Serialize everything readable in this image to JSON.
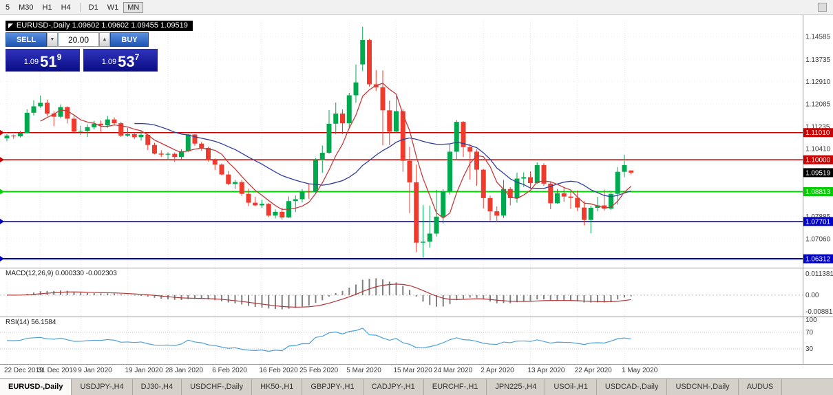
{
  "colors": {
    "up": "#00a94e",
    "down": "#ef3b2d",
    "ma_fast": "#c43a3a",
    "ma_slow": "#2f3d9a",
    "macd_hist": "#7f7f7f",
    "macd_signal": "#b03636",
    "rsi": "#4da0d8",
    "level_red": "#c80000",
    "level_green": "#00d200",
    "level_blue": "#0000c8"
  },
  "toolbar": {
    "timeframes": [
      "5",
      "M30",
      "H1",
      "H4",
      "D1",
      "W1",
      "MN"
    ],
    "active": "MN",
    "separator_before": "D1"
  },
  "ohlc_bar": {
    "icon": "◤",
    "text": "EURUSD-,Daily 1.09602 1.09602 1.09455 1.09519"
  },
  "trade_panel": {
    "sell_label": "SELL",
    "buy_label": "BUY",
    "volume": "20.00",
    "spinner_down_icon": "▼",
    "spinner_up_icon": "▲",
    "bid": {
      "prefix": "1.09",
      "big": "51",
      "sup": "9"
    },
    "ask": {
      "prefix": "1.09",
      "big": "53",
      "sup": "7"
    }
  },
  "price_axis": {
    "ticks": [
      "1.14585",
      "1.13735",
      "1.12910",
      "1.12085",
      "1.11235",
      "1.10410",
      "1.07885",
      "1.07060"
    ],
    "badges": [
      {
        "value": "1.11010",
        "bg": "#c80000",
        "fg": "#ffffff"
      },
      {
        "value": "1.10000",
        "bg": "#c80000",
        "fg": "#ffffff"
      },
      {
        "value": "1.09519",
        "bg": "#000000",
        "fg": "#ffffff"
      },
      {
        "value": "1.08813",
        "bg": "#00cc00",
        "fg": "#ffffff"
      },
      {
        "value": "1.07701",
        "bg": "#0000c8",
        "fg": "#ffffff"
      },
      {
        "value": "1.06312",
        "bg": "#0000c8",
        "fg": "#ffffff"
      }
    ]
  },
  "tabs": {
    "items": [
      "EURUSD-,Daily",
      "USDJPY-,H4",
      "DJ30-,H4",
      "USDCHF-,Daily",
      "HK50-,H1",
      "GBPJPY-,H1",
      "CADJPY-,H1",
      "EURCHF-,H1",
      "JPN225-,H4",
      "USOil-,H1",
      "USDCAD-,Daily",
      "USDCNH-,Daily",
      "AUDUS"
    ],
    "active": "EURUSD-,Daily"
  },
  "chart_data": {
    "type": "candlestick",
    "symbol": "EURUSD-",
    "timeframe": "Daily",
    "ohlc_current": {
      "open": 1.09602,
      "high": 1.09602,
      "low": 1.09455,
      "close": 1.09519
    },
    "price_range": {
      "max": 1.1518,
      "min": 1.0598
    },
    "hlines": [
      {
        "price": 1.1101,
        "color": "#c80000",
        "w": 1.5
      },
      {
        "price": 1.1,
        "color": "#c80000",
        "w": 1.5
      },
      {
        "price": 1.08813,
        "color": "#00d200",
        "w": 2
      },
      {
        "price": 1.07701,
        "color": "#0000c8",
        "w": 1.5
      },
      {
        "price": 1.06312,
        "color": "#0000c8",
        "w": 2
      }
    ],
    "ma": [
      {
        "period": 20,
        "color": "#2f3d9a"
      },
      {
        "period": 6,
        "color": "#c43a3a"
      }
    ],
    "macd": {
      "label": "MACD(12,26,9) 0.000330 -0.002303",
      "params": [
        12,
        26,
        9
      ],
      "values": [
        0.00033,
        -0.002303
      ],
      "ticks": [
        {
          "v": 0.011381,
          "t": "0.011381"
        },
        {
          "v": 0,
          "t": "0.00"
        },
        {
          "v": -0.00881,
          "t": "-0.00881"
        }
      ]
    },
    "rsi": {
      "label": "RSI(14) 56.1584",
      "period": 14,
      "value": 56.1584,
      "ticks": [
        {
          "v": 100,
          "label": "100"
        },
        {
          "v": 70,
          "label": "70"
        },
        {
          "v": 30,
          "label": "30"
        }
      ]
    },
    "x_labels": [
      [
        "22 Dec 2019",
        0
      ],
      [
        "31 Dec 2019",
        5
      ],
      [
        "9 Jan 2020",
        11
      ],
      [
        "19 Jan 2020",
        18
      ],
      [
        "28 Jan 2020",
        24
      ],
      [
        "6 Feb 2020",
        31
      ],
      [
        "16 Feb 2020",
        38
      ],
      [
        "25 Feb 2020",
        44
      ],
      [
        "5 Mar 2020",
        51
      ],
      [
        "15 Mar 2020",
        58
      ],
      [
        "24 Mar 2020",
        64
      ],
      [
        "2 Apr 2020",
        71
      ],
      [
        "13 Apr 2020",
        78
      ],
      [
        "22 Apr 2020",
        85
      ],
      [
        "1 May 2020",
        92
      ]
    ],
    "candles": [
      [
        "2019.12.23",
        1.108,
        1.1095,
        1.1069,
        1.109
      ],
      [
        "2019.12.24",
        1.109,
        1.1094,
        1.1078,
        1.1087
      ],
      [
        "2019.12.26",
        1.1087,
        1.1107,
        1.1083,
        1.11
      ],
      [
        "2019.12.27",
        1.11,
        1.1188,
        1.1098,
        1.1175
      ],
      [
        "2019.12.30",
        1.1175,
        1.1221,
        1.1165,
        1.1199
      ],
      [
        "2019.12.31",
        1.1199,
        1.1239,
        1.1193,
        1.1212
      ],
      [
        "2020.01.02",
        1.1212,
        1.1224,
        1.1163,
        1.1172
      ],
      [
        "2020.01.03",
        1.1172,
        1.1181,
        1.1125,
        1.116
      ],
      [
        "2020.01.06",
        1.116,
        1.1206,
        1.1154,
        1.1196
      ],
      [
        "2020.01.07",
        1.1196,
        1.1199,
        1.1135,
        1.1153
      ],
      [
        "2020.01.08",
        1.1153,
        1.1166,
        1.1097,
        1.1105
      ],
      [
        "2020.01.09",
        1.1105,
        1.1127,
        1.1092,
        1.1107
      ],
      [
        "2020.01.10",
        1.1107,
        1.1132,
        1.1085,
        1.1121
      ],
      [
        "2020.01.13",
        1.1121,
        1.1145,
        1.1113,
        1.1134
      ],
      [
        "2020.01.14",
        1.1134,
        1.1146,
        1.1105,
        1.1128
      ],
      [
        "2020.01.15",
        1.1128,
        1.1163,
        1.1119,
        1.115
      ],
      [
        "2020.01.16",
        1.115,
        1.1158,
        1.1128,
        1.1136
      ],
      [
        "2020.01.17",
        1.1136,
        1.1141,
        1.1085,
        1.109
      ],
      [
        "2020.01.20",
        1.109,
        1.1119,
        1.1086,
        1.1095
      ],
      [
        "2020.01.21",
        1.1095,
        1.1101,
        1.1077,
        1.1084
      ],
      [
        "2020.01.22",
        1.1084,
        1.1109,
        1.1071,
        1.1093
      ],
      [
        "2020.01.23",
        1.1093,
        1.1096,
        1.1036,
        1.1055
      ],
      [
        "2020.01.24",
        1.1055,
        1.1063,
        1.102,
        1.1023
      ],
      [
        "2020.01.27",
        1.1023,
        1.1035,
        1.101,
        1.1019
      ],
      [
        "2020.01.28",
        1.1019,
        1.1028,
        1.0998,
        1.1022
      ],
      [
        "2020.01.29",
        1.1022,
        1.1027,
        1.0992,
        1.101
      ],
      [
        "2020.01.30",
        1.101,
        1.1039,
        1.1001,
        1.1032
      ],
      [
        "2020.01.31",
        1.1032,
        1.1096,
        1.1028,
        1.1094
      ],
      [
        "2020.02.03",
        1.1094,
        1.1095,
        1.1052,
        1.106
      ],
      [
        "2020.02.04",
        1.106,
        1.1066,
        1.1033,
        1.1044
      ],
      [
        "2020.02.05",
        1.1044,
        1.1048,
        1.0994,
        1.0999
      ],
      [
        "2020.02.06",
        1.0999,
        1.1005,
        1.0962,
        1.0982
      ],
      [
        "2020.02.07",
        1.0982,
        1.0986,
        1.0941,
        1.0945
      ],
      [
        "2020.02.10",
        1.0945,
        1.0958,
        1.0905,
        1.091
      ],
      [
        "2020.02.11",
        1.091,
        1.0925,
        1.0891,
        1.0917
      ],
      [
        "2020.02.12",
        1.0917,
        1.0925,
        1.0865,
        1.0873
      ],
      [
        "2020.02.13",
        1.0873,
        1.0892,
        1.0827,
        1.084
      ],
      [
        "2020.02.14",
        1.084,
        1.0862,
        1.0827,
        1.083
      ],
      [
        "2020.02.17",
        1.083,
        1.0851,
        1.0821,
        1.0836
      ],
      [
        "2020.02.18",
        1.0836,
        1.0839,
        1.0786,
        1.0792
      ],
      [
        "2020.02.19",
        1.0792,
        1.0815,
        1.0782,
        1.0806
      ],
      [
        "2020.02.20",
        1.0806,
        1.0821,
        1.0777,
        1.0785
      ],
      [
        "2020.02.21",
        1.0785,
        1.0863,
        1.0783,
        1.0846
      ],
      [
        "2020.02.24",
        1.0846,
        1.0867,
        1.0805,
        1.0853
      ],
      [
        "2020.02.25",
        1.0853,
        1.089,
        1.0841,
        1.0881
      ],
      [
        "2020.02.26",
        1.0881,
        1.0909,
        1.0855,
        1.088
      ],
      [
        "2020.02.27",
        1.088,
        1.1006,
        1.0878,
        1.0999
      ],
      [
        "2020.02.28",
        1.0999,
        1.1053,
        1.0951,
        1.1026
      ],
      [
        "2020.03.02",
        1.1026,
        1.1185,
        1.1022,
        1.1134
      ],
      [
        "2020.03.03",
        1.1134,
        1.1213,
        1.1095,
        1.1172
      ],
      [
        "2020.03.04",
        1.1172,
        1.1187,
        1.1095,
        1.1136
      ],
      [
        "2020.03.05",
        1.1136,
        1.1249,
        1.1117,
        1.124
      ],
      [
        "2020.03.06",
        1.124,
        1.1355,
        1.1212,
        1.1288
      ],
      [
        "2020.03.09",
        1.1355,
        1.1495,
        1.133,
        1.1446
      ],
      [
        "2020.03.10",
        1.1446,
        1.145,
        1.1273,
        1.1281
      ],
      [
        "2020.03.11",
        1.1281,
        1.1334,
        1.1256,
        1.127
      ],
      [
        "2020.03.12",
        1.127,
        1.1333,
        1.1054,
        1.1184
      ],
      [
        "2020.03.13",
        1.1184,
        1.122,
        1.1054,
        1.1105
      ],
      [
        "2020.03.16",
        1.1105,
        1.1237,
        1.1101,
        1.1181
      ],
      [
        "2020.03.17",
        1.1181,
        1.1189,
        1.0955,
        1.0996
      ],
      [
        "2020.03.18",
        1.0996,
        1.1048,
        1.0801,
        1.0916
      ],
      [
        "2020.03.19",
        1.0916,
        1.0982,
        1.0656,
        1.0691
      ],
      [
        "2020.03.20",
        1.0691,
        1.0831,
        1.0636,
        1.0695
      ],
      [
        "2020.03.23",
        1.0695,
        1.0829,
        1.0673,
        1.0725
      ],
      [
        "2020.03.24",
        1.0725,
        1.0888,
        1.0714,
        1.0788
      ],
      [
        "2020.03.25",
        1.0788,
        1.089,
        1.0762,
        1.0882
      ],
      [
        "2020.03.26",
        1.0882,
        1.1059,
        1.087,
        1.103
      ],
      [
        "2020.03.27",
        1.103,
        1.1148,
        1.0999,
        1.1141
      ],
      [
        "2020.03.30",
        1.1141,
        1.1144,
        1.101,
        1.1047
      ],
      [
        "2020.03.31",
        1.1047,
        1.1058,
        1.0926,
        1.103
      ],
      [
        "2020.04.01",
        1.103,
        1.1038,
        1.0903,
        1.0963
      ],
      [
        "2020.04.02",
        1.0963,
        1.0966,
        1.0819,
        1.0857
      ],
      [
        "2020.04.03",
        1.0857,
        1.0866,
        1.0773,
        1.0808
      ],
      [
        "2020.04.06",
        1.0808,
        1.0826,
        1.0768,
        1.0792
      ],
      [
        "2020.04.07",
        1.0792,
        1.0925,
        1.0783,
        1.0891
      ],
      [
        "2020.04.08",
        1.0891,
        1.0898,
        1.083,
        1.0857
      ],
      [
        "2020.04.09",
        1.0857,
        1.0952,
        1.084,
        1.093
      ],
      [
        "2020.04.10",
        1.093,
        1.0953,
        1.0899,
        1.0935
      ],
      [
        "2020.04.13",
        1.0935,
        1.0957,
        1.0892,
        1.0913
      ],
      [
        "2020.04.14",
        1.0913,
        1.099,
        1.091,
        1.098
      ],
      [
        "2020.04.15",
        1.098,
        1.0987,
        1.0903,
        1.0911
      ],
      [
        "2020.04.16",
        1.0911,
        1.092,
        1.0816,
        1.0838
      ],
      [
        "2020.04.17",
        1.0838,
        1.0891,
        1.0836,
        1.0875
      ],
      [
        "2020.04.20",
        1.0875,
        1.0897,
        1.0843,
        1.0863
      ],
      [
        "2020.04.21",
        1.0863,
        1.0879,
        1.0817,
        1.0858
      ],
      [
        "2020.04.22",
        1.0858,
        1.0885,
        1.0809,
        1.0822
      ],
      [
        "2020.04.23",
        1.0822,
        1.0846,
        1.0756,
        1.0776
      ],
      [
        "2020.04.24",
        1.0776,
        1.0829,
        1.0726,
        1.0821
      ],
      [
        "2020.04.27",
        1.0821,
        1.0862,
        1.0808,
        1.083
      ],
      [
        "2020.04.28",
        1.083,
        1.0889,
        1.081,
        1.0818
      ],
      [
        "2020.04.29",
        1.0818,
        1.0885,
        1.0813,
        1.0873
      ],
      [
        "2020.04.30",
        1.0873,
        1.0973,
        1.0833,
        1.0955
      ],
      [
        "2020.05.01",
        1.0955,
        1.1019,
        1.0935,
        1.098
      ],
      [
        "2020.05.04",
        1.09602,
        1.09602,
        1.09455,
        1.09519
      ]
    ]
  }
}
